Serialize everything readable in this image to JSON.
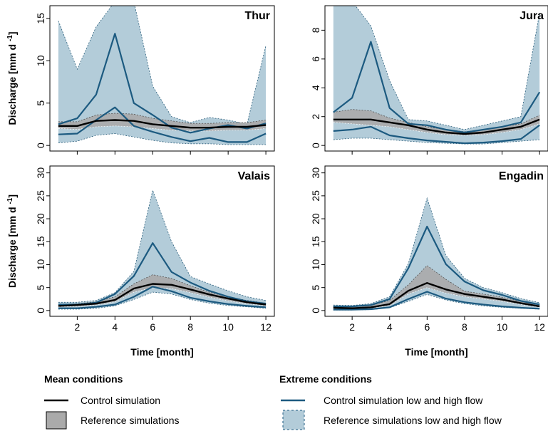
{
  "colors": {
    "mean_line": "#000000",
    "reference_band": "#aaaaaa",
    "extreme_line": "#1c5a80",
    "extreme_band": "#b3ccd9"
  },
  "axes": {
    "x_label": "Time [month]",
    "y_label_main": "Discharge [mm d",
    "y_label_sup": "-1",
    "y_label_close": "]"
  },
  "legend": {
    "mean_title": "Mean conditions",
    "extreme_title": "Extreme conditions",
    "mean_line_label": "Control simulation",
    "mean_band_label": "Reference simulations",
    "extreme_line_label": "Control simulation low and high flow",
    "extreme_band_label": "Reference simulations low and high flow"
  },
  "chart_data": [
    {
      "type": "area",
      "title": "Thur",
      "x": [
        1,
        2,
        3,
        4,
        5,
        6,
        7,
        8,
        9,
        10,
        11,
        12
      ],
      "xticks": [
        2,
        4,
        6,
        8,
        10,
        12
      ],
      "ylim": [
        0,
        16.5
      ],
      "yticks": [
        0,
        5,
        10,
        15
      ],
      "series": [
        {
          "name": "Control simulation",
          "values": [
            2.3,
            2.3,
            2.9,
            3.0,
            2.9,
            2.5,
            2.3,
            2.1,
            2.1,
            2.2,
            2.2,
            2.4
          ]
        },
        {
          "name": "Reference simulations",
          "low": [
            2.0,
            1.9,
            2.2,
            2.3,
            2.2,
            2.0,
            1.8,
            1.7,
            1.7,
            1.8,
            1.8,
            2.0
          ],
          "high": [
            2.8,
            2.8,
            3.6,
            3.8,
            3.7,
            3.2,
            2.9,
            2.6,
            2.6,
            2.7,
            2.7,
            3.0
          ]
        },
        {
          "name": "Control simulation low and high flow",
          "low": [
            1.3,
            1.4,
            3.0,
            4.5,
            2.3,
            1.6,
            1.0,
            0.5,
            0.9,
            0.4,
            0.4,
            1.4
          ],
          "high": [
            2.5,
            3.2,
            6.0,
            13.2,
            5.0,
            3.6,
            2.1,
            1.5,
            2.0,
            2.4,
            2.0,
            2.6
          ]
        },
        {
          "name": "Reference simulations low and high flow",
          "low": [
            0.3,
            0.5,
            1.2,
            1.4,
            1.0,
            0.6,
            0.3,
            0.2,
            0.2,
            0.1,
            0.1,
            0.1
          ],
          "high": [
            14.7,
            9.0,
            14.0,
            17.0,
            17.0,
            7.0,
            3.4,
            2.7,
            3.3,
            3.0,
            2.5,
            11.8
          ]
        }
      ]
    },
    {
      "type": "area",
      "title": "Jura",
      "x": [
        1,
        2,
        3,
        4,
        5,
        6,
        7,
        8,
        9,
        10,
        11,
        12
      ],
      "xticks": [
        2,
        4,
        6,
        8,
        10,
        12
      ],
      "ylim": [
        0,
        9.7
      ],
      "yticks": [
        0,
        2,
        4,
        6,
        8
      ],
      "series": [
        {
          "name": "Control simulation",
          "values": [
            1.8,
            1.8,
            1.8,
            1.6,
            1.4,
            1.1,
            0.9,
            0.8,
            0.9,
            1.1,
            1.3,
            1.8
          ]
        },
        {
          "name": "Reference simulations",
          "low": [
            1.6,
            1.5,
            1.4,
            1.3,
            1.1,
            0.9,
            0.75,
            0.7,
            0.75,
            0.9,
            1.1,
            1.5
          ],
          "high": [
            2.3,
            2.5,
            2.4,
            1.9,
            1.6,
            1.3,
            1.1,
            0.95,
            1.1,
            1.3,
            1.5,
            2.1
          ]
        },
        {
          "name": "Control simulation low and high flow",
          "low": [
            1.0,
            1.1,
            1.3,
            0.7,
            0.5,
            0.35,
            0.25,
            0.15,
            0.2,
            0.3,
            0.45,
            1.4
          ],
          "high": [
            2.3,
            3.3,
            7.2,
            2.6,
            1.5,
            1.4,
            1.1,
            0.9,
            1.1,
            1.3,
            1.6,
            3.7
          ]
        },
        {
          "name": "Reference simulations low and high flow",
          "low": [
            0.4,
            0.5,
            0.5,
            0.4,
            0.3,
            0.2,
            0.15,
            0.1,
            0.1,
            0.2,
            0.3,
            0.4
          ],
          "high": [
            10.0,
            10.0,
            8.3,
            4.5,
            1.8,
            1.7,
            1.4,
            1.1,
            1.4,
            1.7,
            2.0,
            9.2
          ]
        }
      ]
    },
    {
      "type": "area",
      "title": "Valais",
      "x": [
        1,
        2,
        3,
        4,
        5,
        6,
        7,
        8,
        9,
        10,
        11,
        12
      ],
      "xticks": [
        2,
        4,
        6,
        8,
        10,
        12
      ],
      "ylim": [
        0,
        31.5
      ],
      "yticks": [
        0,
        5,
        10,
        15,
        20,
        25,
        30
      ],
      "series": [
        {
          "name": "Control simulation",
          "values": [
            1.0,
            1.2,
            1.5,
            2.3,
            4.8,
            5.8,
            5.6,
            4.6,
            3.5,
            2.6,
            1.8,
            1.3
          ]
        },
        {
          "name": "Reference simulations",
          "low": [
            0.8,
            0.9,
            1.2,
            1.9,
            4.0,
            5.0,
            4.8,
            3.9,
            2.9,
            2.1,
            1.5,
            1.0
          ],
          "high": [
            1.3,
            1.5,
            1.9,
            3.0,
            5.8,
            7.8,
            7.0,
            5.4,
            4.0,
            3.0,
            2.2,
            1.6
          ]
        },
        {
          "name": "Control simulation low and high flow",
          "low": [
            0.5,
            0.5,
            0.8,
            1.3,
            3.0,
            5.2,
            4.2,
            2.8,
            2.0,
            1.4,
            1.0,
            0.7
          ],
          "high": [
            1.3,
            1.3,
            1.7,
            3.6,
            7.5,
            14.7,
            8.4,
            6.1,
            4.3,
            3.0,
            2.0,
            1.5
          ]
        },
        {
          "name": "Reference simulations low and high flow",
          "low": [
            0.3,
            0.3,
            0.5,
            1.0,
            2.4,
            4.0,
            3.6,
            2.4,
            1.6,
            1.1,
            0.8,
            0.5
          ],
          "high": [
            1.8,
            1.8,
            2.2,
            3.9,
            8.5,
            26.2,
            15.0,
            7.4,
            5.8,
            4.3,
            3.0,
            2.2
          ]
        }
      ]
    },
    {
      "type": "area",
      "title": "Engadin",
      "x": [
        1,
        2,
        3,
        4,
        5,
        6,
        7,
        8,
        9,
        10,
        11,
        12
      ],
      "xticks": [
        2,
        4,
        6,
        8,
        10,
        12
      ],
      "ylim": [
        0,
        31.5
      ],
      "yticks": [
        0,
        5,
        10,
        15,
        20,
        25,
        30
      ],
      "series": [
        {
          "name": "Control simulation",
          "values": [
            0.6,
            0.5,
            0.7,
            1.4,
            4.3,
            6.0,
            4.6,
            3.6,
            3.0,
            2.4,
            1.6,
            0.9
          ]
        },
        {
          "name": "Reference simulations",
          "low": [
            0.4,
            0.4,
            0.5,
            1.1,
            3.6,
            5.0,
            3.8,
            3.0,
            2.5,
            2.0,
            1.3,
            0.7
          ],
          "high": [
            0.9,
            0.8,
            1.1,
            2.2,
            5.6,
            9.8,
            6.8,
            4.2,
            3.6,
            2.9,
            2.0,
            1.3
          ]
        },
        {
          "name": "Control simulation low and high flow",
          "low": [
            0.2,
            0.2,
            0.3,
            0.7,
            2.5,
            4.1,
            2.6,
            1.8,
            1.3,
            0.9,
            0.6,
            0.4
          ],
          "high": [
            0.9,
            0.9,
            1.2,
            2.5,
            9.2,
            18.3,
            10.1,
            6.3,
            4.4,
            3.4,
            2.1,
            1.3
          ]
        },
        {
          "name": "Reference simulations low and high flow",
          "low": [
            0.1,
            0.1,
            0.2,
            0.6,
            2.0,
            3.5,
            2.3,
            1.5,
            1.0,
            0.7,
            0.5,
            0.3
          ],
          "high": [
            1.2,
            1.1,
            1.5,
            3.0,
            10.2,
            24.5,
            12.0,
            7.0,
            5.0,
            3.9,
            2.6,
            1.7
          ]
        }
      ]
    }
  ]
}
